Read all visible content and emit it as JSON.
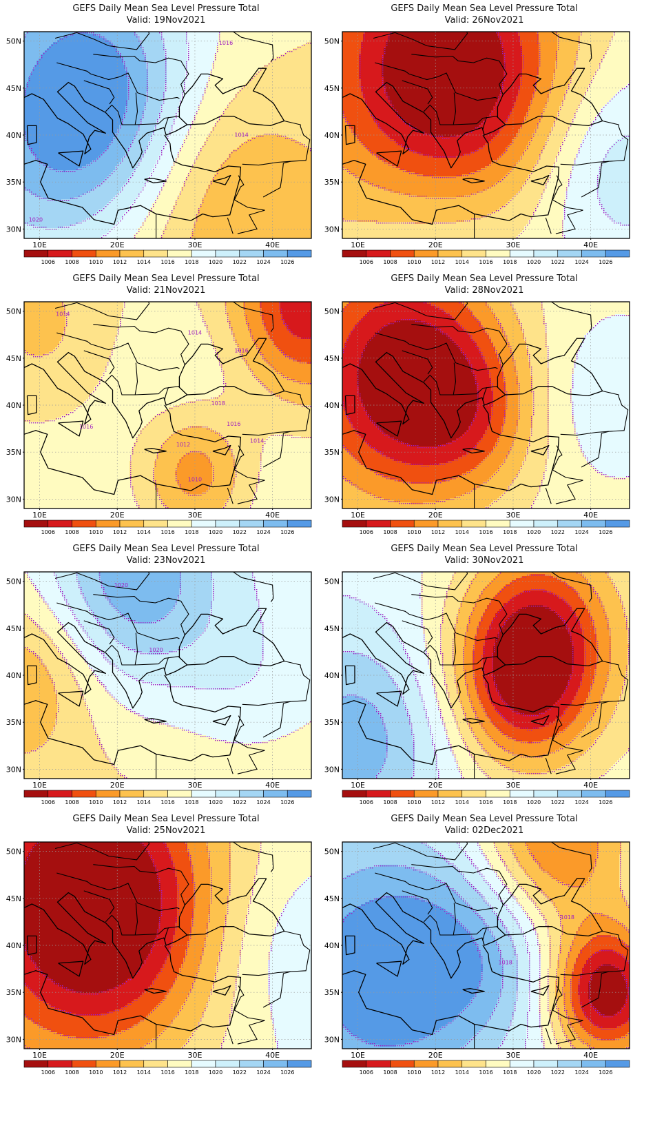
{
  "figure": {
    "title": "GEFS Daily Mean Sea Level Pressure Total",
    "valid_prefix": "Valid:",
    "lat_labels": [
      "50N",
      "45N",
      "40N",
      "35N",
      "30N"
    ],
    "lon_labels": [
      "10E",
      "20E",
      "30E",
      "40E"
    ],
    "colorbar_labels": [
      "1006",
      "1008",
      "1010",
      "1012",
      "1014",
      "1016",
      "1018",
      "1020",
      "1022",
      "1024",
      "1026"
    ],
    "colorbar_colors": [
      "#a50f0f",
      "#d7191c",
      "#f05010",
      "#fb9a29",
      "#fdc24e",
      "#fee38a",
      "#fffbc0",
      "#e6fbff",
      "#cdf0fb",
      "#a4d6f4",
      "#7dbcef",
      "#559ae6",
      "#2f6fd0"
    ],
    "contour_color": "#a020c0",
    "lon_range": [
      8,
      45
    ],
    "lat_range": [
      29,
      51
    ]
  },
  "panels": [
    {
      "valid": "19Nov2021",
      "column": "left",
      "row": 0,
      "field": {
        "base": 1016,
        "lon_grad": -0.05,
        "lat_grad": 0.1,
        "centers": [
          {
            "lon": 17,
            "lat": 45,
            "amp": 9,
            "radius": 9
          },
          {
            "lon": 10,
            "lat": 35,
            "amp": 5,
            "radius": 10
          },
          {
            "lon": 34,
            "lat": 34,
            "amp": -3,
            "radius": 8
          }
        ]
      },
      "contour_labels": [
        {
          "text": "1016",
          "lon": 34,
          "lat": 49.6
        },
        {
          "text": "1014",
          "lon": 36,
          "lat": 39.8
        },
        {
          "text": "1020",
          "lon": 9.5,
          "lat": 30.8
        }
      ]
    },
    {
      "valid": "26Nov2021",
      "column": "right",
      "row": 0,
      "field": {
        "base": 1016,
        "lon_grad": 0.08,
        "lat_grad": -0.05,
        "centers": [
          {
            "lon": 22,
            "lat": 46,
            "amp": -13,
            "radius": 10
          },
          {
            "lon": 42,
            "lat": 37,
            "amp": 4,
            "radius": 7
          },
          {
            "lon": 20,
            "lat": 31,
            "amp": 2,
            "radius": 8
          }
        ]
      },
      "contour_labels": []
    },
    {
      "valid": "21Nov2021",
      "column": "left",
      "row": 1,
      "field": {
        "base": 1017,
        "lon_grad": 0.0,
        "lat_grad": -0.05,
        "centers": [
          {
            "lon": 30,
            "lat": 33,
            "amp": -7,
            "radius": 5
          },
          {
            "lon": 44,
            "lat": 50,
            "amp": -10,
            "radius": 7
          },
          {
            "lon": 10,
            "lat": 48,
            "amp": -3,
            "radius": 7
          },
          {
            "lon": 32,
            "lat": 42,
            "amp": 2,
            "radius": 8
          }
        ]
      },
      "contour_labels": [
        {
          "text": "1014",
          "lon": 13,
          "lat": 49.5
        },
        {
          "text": "1014",
          "lon": 30,
          "lat": 47.5
        },
        {
          "text": "1016",
          "lon": 36,
          "lat": 45.6
        },
        {
          "text": "1018",
          "lon": 33,
          "lat": 40
        },
        {
          "text": "1016",
          "lon": 16,
          "lat": 37.5
        },
        {
          "text": "1016",
          "lon": 35,
          "lat": 37.8
        },
        {
          "text": "1014",
          "lon": 38,
          "lat": 36
        },
        {
          "text": "1012",
          "lon": 28.5,
          "lat": 35.6
        },
        {
          "text": "1010",
          "lon": 30,
          "lat": 31.9
        }
      ]
    },
    {
      "valid": "28Nov2021",
      "column": "right",
      "row": 1,
      "field": {
        "base": 1017,
        "lon_grad": 0.03,
        "lat_grad": 0.0,
        "centers": [
          {
            "lon": 16,
            "lat": 43,
            "amp": -13,
            "radius": 9
          },
          {
            "lon": 25,
            "lat": 39,
            "amp": -4,
            "radius": 6
          },
          {
            "lon": 40,
            "lat": 41,
            "amp": 2,
            "radius": 6
          }
        ]
      },
      "contour_labels": []
    },
    {
      "valid": "23Nov2021",
      "column": "left",
      "row": 2,
      "field": {
        "base": 1017,
        "lon_grad": 0.05,
        "lat_grad": 0.08,
        "centers": [
          {
            "lon": 22,
            "lat": 50,
            "amp": 8,
            "radius": 8
          },
          {
            "lon": 9,
            "lat": 40,
            "amp": -4,
            "radius": 6
          },
          {
            "lon": 36,
            "lat": 40,
            "amp": 2,
            "radius": 6
          }
        ]
      },
      "contour_labels": [
        {
          "text": "1020",
          "lon": 20.5,
          "lat": 49.4
        },
        {
          "text": "1020",
          "lon": 25,
          "lat": 42.5
        }
      ]
    },
    {
      "valid": "30Nov2021",
      "column": "right",
      "row": 2,
      "field": {
        "base": 1018,
        "lon_grad": -0.06,
        "lat_grad": 0.0,
        "centers": [
          {
            "lon": 33,
            "lat": 44,
            "amp": -11,
            "radius": 7
          },
          {
            "lon": 31,
            "lat": 38,
            "amp": -7,
            "radius": 6
          },
          {
            "lon": 10,
            "lat": 33,
            "amp": 6,
            "radius": 8
          }
        ]
      },
      "contour_labels": []
    },
    {
      "valid": "25Nov2021",
      "column": "left",
      "row": 3,
      "field": {
        "base": 1017,
        "lon_grad": 0.05,
        "lat_grad": -0.03,
        "centers": [
          {
            "lon": 17,
            "lat": 44,
            "amp": -15,
            "radius": 11
          },
          {
            "lon": 40,
            "lat": 40,
            "amp": 2,
            "radius": 7
          }
        ]
      },
      "contour_labels": []
    },
    {
      "valid": "02Dec2021",
      "column": "right",
      "row": 3,
      "field": {
        "base": 1018,
        "lon_grad": 0.0,
        "lat_grad": 0.0,
        "centers": [
          {
            "lon": 13,
            "lat": 37,
            "amp": 10,
            "radius": 11
          },
          {
            "lon": 42,
            "lat": 35,
            "amp": -14,
            "radius": 5
          },
          {
            "lon": 35,
            "lat": 51,
            "amp": -9,
            "radius": 7
          },
          {
            "lon": 27,
            "lat": 40,
            "amp": 4,
            "radius": 7
          }
        ]
      },
      "contour_labels": [
        {
          "text": "1018",
          "lon": 37,
          "lat": 42.8
        },
        {
          "text": "1018",
          "lon": 29,
          "lat": 38
        }
      ]
    }
  ]
}
